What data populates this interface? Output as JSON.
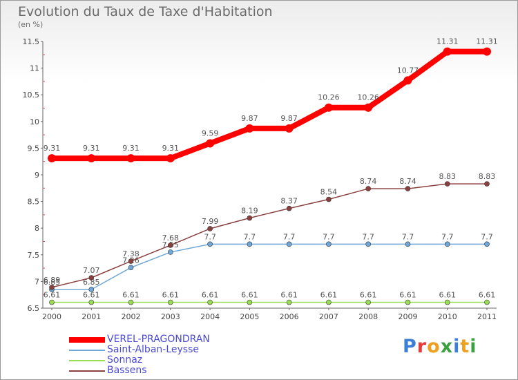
{
  "chart_data": {
    "type": "line",
    "title": "Evolution du Taux de Taxe d'Habitation",
    "subtitle": "(en %)",
    "x": [
      "2000",
      "2001",
      "2002",
      "2003",
      "2004",
      "2005",
      "2006",
      "2007",
      "2008",
      "2009",
      "2010",
      "2011"
    ],
    "ylim": [
      6.5,
      11.5
    ],
    "yticks": [
      "6.5",
      "7",
      "7.5",
      "8",
      "8.5",
      "9",
      "9.5",
      "10",
      "10.5",
      "11",
      "11.5"
    ],
    "grid": false,
    "legend_position": "bottom-left",
    "series": [
      {
        "name": "VEREL-PRAGONDRAN",
        "color": "#ff0000",
        "values": [
          9.31,
          9.31,
          9.31,
          9.31,
          9.59,
          9.87,
          9.87,
          10.26,
          10.26,
          10.77,
          11.31,
          11.31
        ],
        "labels": [
          "9.31",
          "9.31",
          "9.31",
          "9.31",
          "9.59",
          "9.87",
          "9.87",
          "10.26",
          "10.26",
          "10.77",
          "11.31",
          "11.31"
        ]
      },
      {
        "name": "Saint-Alban-Leysse",
        "color": "#6fa8d8",
        "values": [
          6.85,
          6.85,
          7.26,
          7.55,
          7.7,
          7.7,
          7.7,
          7.7,
          7.7,
          7.7,
          7.7,
          7.7
        ],
        "labels": [
          "6.85",
          "6.85",
          "7.26",
          "7.55",
          "7.7",
          "7.7",
          "7.7",
          "7.7",
          "7.7",
          "7.7",
          "7.7",
          "7.7"
        ]
      },
      {
        "name": "Sonnaz",
        "color": "#99dd55",
        "values": [
          6.61,
          6.61,
          6.61,
          6.61,
          6.61,
          6.61,
          6.61,
          6.61,
          6.61,
          6.61,
          6.61,
          6.61
        ],
        "labels": [
          "6.61",
          "6.61",
          "6.61",
          "6.61",
          "6.61",
          "6.61",
          "6.61",
          "6.61",
          "6.61",
          "6.61",
          "6.61",
          "6.61"
        ]
      },
      {
        "name": "Bassens",
        "color": "#8b4040",
        "values": [
          6.89,
          7.07,
          7.38,
          7.68,
          7.99,
          8.19,
          8.37,
          8.54,
          8.74,
          8.74,
          8.83,
          8.83
        ],
        "labels": [
          "6.89",
          "7.07",
          "7.38",
          "7.68",
          "7.99",
          "8.19",
          "8.37",
          "8.54",
          "8.74",
          "8.74",
          "8.83",
          "8.83"
        ]
      }
    ]
  },
  "brand": {
    "letters": [
      {
        "ch": "P",
        "color": "#3b7fd6"
      },
      {
        "ch": "r",
        "color": "#e63b3b"
      },
      {
        "ch": "o",
        "color": "#f0a020"
      },
      {
        "ch": "x",
        "color": "#3aa040"
      },
      {
        "ch": "i",
        "color": "#3b7fd6"
      },
      {
        "ch": "t",
        "color": "#f0a020"
      },
      {
        "ch": "i",
        "color": "#3aa040"
      }
    ]
  }
}
